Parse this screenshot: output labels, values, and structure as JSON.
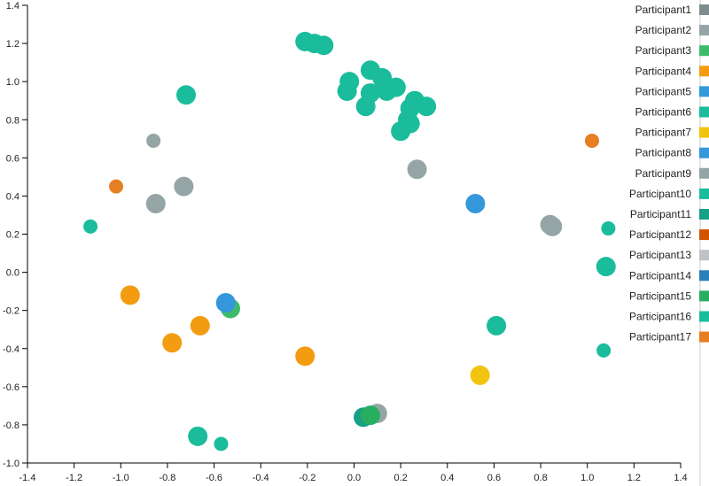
{
  "chart_data": {
    "type": "scatter",
    "title": "",
    "xlabel": "",
    "ylabel": "",
    "xlim": [
      -1.4,
      1.4
    ],
    "ylim": [
      -1.0,
      1.4
    ],
    "x_ticks": [
      "-1.4",
      "-1.2",
      "-1.0",
      "-0.8",
      "-0.6",
      "-0.4",
      "-0.2",
      "0.0",
      "0.2",
      "0.4",
      "0.6",
      "0.8",
      "1.0",
      "1.2",
      "1.4"
    ],
    "y_ticks": [
      "-1.0",
      "-0.8",
      "-0.6",
      "-0.4",
      "-0.2",
      "0.0",
      "0.2",
      "0.4",
      "0.6",
      "0.8",
      "1.0",
      "1.2",
      "1.4"
    ],
    "grid": false,
    "legend_position": "right",
    "series": [
      {
        "name": "Participant1",
        "color": "#7f8c8d",
        "points": []
      },
      {
        "name": "Participant2",
        "color": "#95a5a6",
        "points": [
          [
            -0.86,
            0.69,
            "small"
          ],
          [
            -0.85,
            0.36,
            "large"
          ],
          [
            -0.73,
            0.45,
            "large"
          ],
          [
            0.27,
            0.54,
            "large"
          ],
          [
            0.85,
            0.24,
            "large"
          ]
        ]
      },
      {
        "name": "Participant3",
        "color": "#3dbb6a",
        "points": [
          [
            -0.53,
            -0.19,
            "large"
          ]
        ]
      },
      {
        "name": "Participant4",
        "color": "#f39c12",
        "points": [
          [
            -0.96,
            -0.12,
            "large"
          ],
          [
            -0.78,
            -0.37,
            "large"
          ],
          [
            -0.66,
            -0.28,
            "large"
          ],
          [
            -0.21,
            -0.44,
            "large"
          ]
        ]
      },
      {
        "name": "Participant5",
        "color": "#3498db",
        "points": []
      },
      {
        "name": "Participant6",
        "color": "#1abc9c",
        "points": [
          [
            -0.72,
            0.93,
            "large"
          ],
          [
            -1.13,
            0.24,
            "small"
          ],
          [
            -0.67,
            -0.86,
            "large"
          ],
          [
            -0.57,
            -0.9,
            "small"
          ],
          [
            -0.21,
            1.21,
            "large"
          ],
          [
            -0.17,
            1.2,
            "large"
          ],
          [
            -0.13,
            1.19,
            "large"
          ],
          [
            -0.02,
            1.0,
            "large"
          ],
          [
            -0.03,
            0.95,
            "large"
          ],
          [
            0.07,
            1.06,
            "large"
          ],
          [
            0.07,
            0.94,
            "large"
          ],
          [
            0.12,
            1.02,
            "large"
          ],
          [
            0.05,
            0.87,
            "large"
          ],
          [
            0.14,
            0.95,
            "large"
          ],
          [
            0.18,
            0.97,
            "large"
          ],
          [
            0.2,
            0.74,
            "large"
          ],
          [
            0.23,
            0.8,
            "large"
          ],
          [
            0.24,
            0.86,
            "large"
          ],
          [
            0.24,
            0.78,
            "large"
          ],
          [
            0.26,
            0.9,
            "large"
          ],
          [
            0.31,
            0.87,
            "large"
          ],
          [
            0.61,
            -0.28,
            "large"
          ],
          [
            1.08,
            0.03,
            "large"
          ],
          [
            1.09,
            0.23,
            "small"
          ],
          [
            1.07,
            -0.41,
            "small"
          ]
        ]
      },
      {
        "name": "Participant7",
        "color": "#f1c40f",
        "points": [
          [
            0.54,
            -0.54,
            "large"
          ]
        ]
      },
      {
        "name": "Participant8",
        "color": "#3498db",
        "points": [
          [
            -0.55,
            -0.16,
            "large"
          ],
          [
            0.52,
            0.36,
            "large"
          ]
        ]
      },
      {
        "name": "Participant9",
        "color": "#95a5a6",
        "points": [
          [
            0.1,
            -0.74,
            "large"
          ],
          [
            0.84,
            0.25,
            "large"
          ]
        ]
      },
      {
        "name": "Participant10",
        "color": "#1abc9c",
        "points": []
      },
      {
        "name": "Participant11",
        "color": "#16a085",
        "points": [
          [
            0.04,
            -0.76,
            "large"
          ]
        ]
      },
      {
        "name": "Participant12",
        "color": "#d35400",
        "points": []
      },
      {
        "name": "Participant13",
        "color": "#bdc3c7",
        "points": []
      },
      {
        "name": "Participant14",
        "color": "#2980b9",
        "points": []
      },
      {
        "name": "Participant15",
        "color": "#27ae60",
        "points": [
          [
            0.07,
            -0.75,
            "large"
          ]
        ]
      },
      {
        "name": "Participant16",
        "color": "#1abc9c",
        "points": []
      },
      {
        "name": "Participant17",
        "color": "#e67e22",
        "points": [
          [
            -1.02,
            0.45,
            "small"
          ],
          [
            1.02,
            0.69,
            "small"
          ]
        ]
      }
    ]
  }
}
